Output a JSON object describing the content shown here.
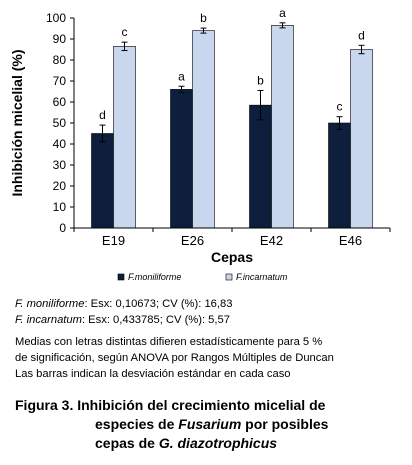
{
  "chart_data": {
    "type": "bar",
    "categories": [
      "E19",
      "E26",
      "E42",
      "E46"
    ],
    "series": [
      {
        "name": "F.moniliforme",
        "color": "#0d1f3c",
        "values": [
          45,
          66,
          58.5,
          50
        ],
        "errors": [
          4,
          1.5,
          7,
          3
        ],
        "letters": [
          "d",
          "a",
          "b",
          "c"
        ]
      },
      {
        "name": "F.incarnatum",
        "color": "#c8d6ee",
        "values": [
          86.5,
          94,
          96.5,
          85
        ],
        "errors": [
          2,
          1.2,
          1.2,
          2
        ],
        "letters": [
          "c",
          "b",
          "a",
          "d"
        ]
      }
    ],
    "xlabel": "Cepas",
    "ylabel": "Inhibición micelial (%)",
    "ylim": [
      0,
      100
    ],
    "yticks": [
      "0",
      "10",
      "20",
      "30",
      "40",
      "50",
      "60",
      "70",
      "80",
      "90",
      "100"
    ],
    "legend_position": "bottom"
  },
  "stats": {
    "line1_species": "F. moniliforme",
    "line1_rest": ": Esx: 0,10673; CV (%): 16,83",
    "line2_species": "F. incarnatum",
    "line2_rest": ": Esx: 0,433785; CV (%): 5,57"
  },
  "footnote": {
    "line1": "Medias con letras distintas difieren estadísticamente para 5 %",
    "line2": "de significación, según ANOVA por Rangos Múltiples de Duncan",
    "line3": "Las barras indican la desviación estándar en cada caso"
  },
  "caption": {
    "line1": "Figura 3. Inhibición del crecimiento micelial de",
    "line2_a": "especies de ",
    "line2_b": "Fusarium",
    "line2_c": " por posibles",
    "line3_a": "cepas de ",
    "line3_b": "G. diazotrophicus"
  }
}
